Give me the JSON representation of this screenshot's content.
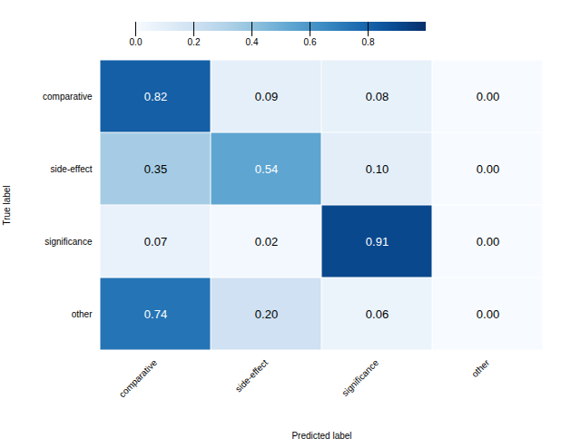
{
  "chart_data": {
    "type": "heatmap",
    "row_labels": [
      "comparative",
      "side-effect",
      "significance",
      "other"
    ],
    "col_labels": [
      "comparative",
      "side-effect",
      "significance",
      "other"
    ],
    "values": [
      [
        0.82,
        0.09,
        0.08,
        0
      ],
      [
        0.35,
        0.54,
        0.1,
        0
      ],
      [
        0.07,
        0.02,
        0.91,
        0
      ],
      [
        0.74,
        0.2,
        0.06,
        0
      ]
    ],
    "value_labels": [
      [
        "0.82",
        "0.09",
        "0.08",
        "0.00"
      ],
      [
        "0.35",
        "0.54",
        "0.10",
        "0.00"
      ],
      [
        "0.07",
        "0.02",
        "0.91",
        "0.00"
      ],
      [
        "0.74",
        "0.20",
        "0.06",
        "0.00"
      ]
    ],
    "xlabel": "Predicted label",
    "ylabel": "True label",
    "color": "Blues",
    "zlim": [
      0,
      1
    ],
    "zticks": [
      {
        "value": 0,
        "label": "0.0"
      },
      0.2,
      0.4,
      0.6,
      0.8
    ],
    "data_labels": true
  }
}
